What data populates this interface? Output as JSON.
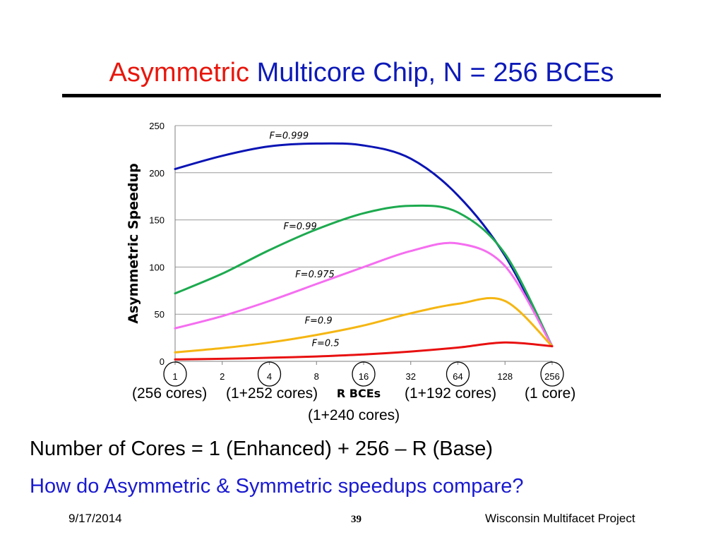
{
  "slide": {
    "title_part1": "Asymmetric",
    "title_part2": "Multicore Chip, N = 256 BCEs",
    "title_color1": "#e8160c",
    "title_color2": "#0d1ab8",
    "core_labels": [
      "(256 cores)",
      "(1+252 cores)",
      "(1+192 cores)",
      "(1 core)",
      "(1+240 cores)"
    ],
    "line1": "Number of Cores = 1 (Enhanced) + 256 – R (Base)",
    "line2": "How do Asymmetric & Symmetric speedups compare?",
    "footer_date": "9/17/2014",
    "footer_page": "39",
    "footer_project": "Wisconsin Multifacet Project"
  },
  "chart_data": {
    "type": "line",
    "x": [
      "1",
      "2",
      "4",
      "8",
      "16",
      "32",
      "64",
      "128",
      "256"
    ],
    "xlabel": "R BCEs",
    "ylabel": "Asymmetric Speedup",
    "ylim": [
      0,
      250
    ],
    "yticks": [
      0,
      50,
      100,
      150,
      200,
      250
    ],
    "grid": true,
    "circled_x": [
      "1",
      "4",
      "16",
      "64",
      "256"
    ],
    "series": [
      {
        "name": "F=0.999",
        "color": "#0a14b4",
        "values": [
          204,
          218,
          228,
          231,
          229,
          215,
          176,
          112,
          16
        ]
      },
      {
        "name": "F=0.99",
        "color": "#1daa4f",
        "values": [
          72,
          93,
          118,
          140,
          157,
          165,
          158,
          114,
          16
        ]
      },
      {
        "name": "F=0.975",
        "color": "#f56ef0",
        "values": [
          35,
          48,
          64,
          82,
          100,
          117,
          125,
          101,
          16
        ]
      },
      {
        "name": "F=0.9",
        "color": "#f5b612",
        "values": [
          9.5,
          14,
          20,
          28,
          38,
          51,
          61,
          64,
          16
        ]
      },
      {
        "name": "F=0.5",
        "color": "#e81010",
        "values": [
          2,
          2.7,
          3.8,
          5.2,
          7.3,
          10.4,
          14.6,
          20,
          16
        ]
      }
    ]
  }
}
